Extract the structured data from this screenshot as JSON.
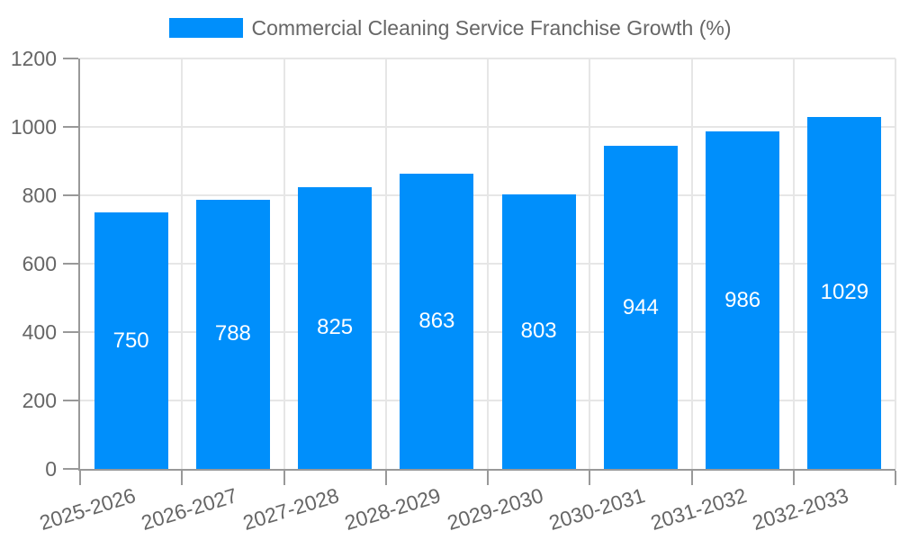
{
  "legend": {
    "label": "Commercial Cleaning Service Franchise Growth (%)"
  },
  "chart_data": {
    "type": "bar",
    "title": "Commercial Cleaning Service Franchise Growth (%)",
    "series_name": "Commercial Cleaning Service Franchise Growth (%)",
    "categories": [
      "2025-2026",
      "2026-2027",
      "2027-2028",
      "2028-2029",
      "2029-2030",
      "2030-2031",
      "2031-2032",
      "2032-2033"
    ],
    "values": [
      750,
      788,
      825,
      863,
      803,
      944,
      986,
      1029
    ],
    "data_labels": [
      "750",
      "788",
      "825",
      "863",
      "803",
      "944",
      "986",
      "1029"
    ],
    "xlabel": "",
    "ylabel": "",
    "ylim": [
      0,
      1200
    ],
    "yticks": [
      0,
      200,
      400,
      600,
      800,
      1000,
      1200
    ],
    "grid": true,
    "legend_position": "top",
    "colors": {
      "bar": "#008FFB",
      "bar_value_text": "#ffffff",
      "axis_text": "#666666",
      "grid_line": "#e6e6e6",
      "axis_line": "#999999",
      "background": "#ffffff"
    }
  }
}
